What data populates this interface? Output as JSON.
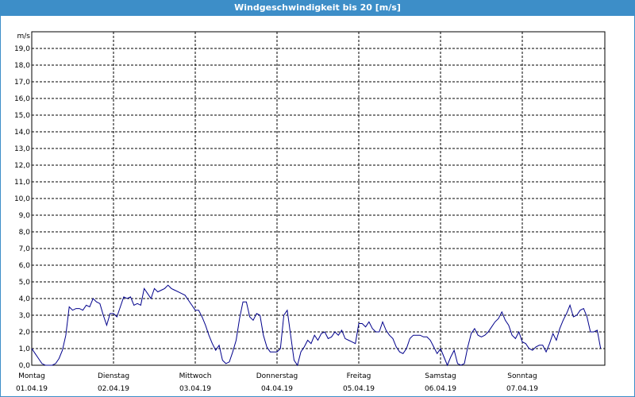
{
  "chart_data": {
    "type": "line",
    "title": "Windgeschwindigkeit bis 20 [m/s]",
    "ylabel": "m/s",
    "ylim": [
      0,
      20
    ],
    "yticks": [
      "0,0",
      "1,0",
      "2,0",
      "3,0",
      "4,0",
      "5,0",
      "6,0",
      "7,0",
      "8,0",
      "9,0",
      "10,0",
      "11,0",
      "12,0",
      "13,0",
      "14,0",
      "15,0",
      "16,0",
      "17,0",
      "18,0",
      "19,0"
    ],
    "days": [
      {
        "name": "Montag",
        "date": "01.04.19"
      },
      {
        "name": "Dienstag",
        "date": "02.04.19"
      },
      {
        "name": "Mittwoch",
        "date": "03.04.19"
      },
      {
        "name": "Donnerstag",
        "date": "04.04.19"
      },
      {
        "name": "Freitag",
        "date": "05.04.19"
      },
      {
        "name": "Samstag",
        "date": "06.04.19"
      },
      {
        "name": "Sonntag",
        "date": "07.04.19"
      }
    ],
    "grid": true,
    "line_color": "#00008b",
    "series": [
      {
        "points_per_day": 24,
        "values": [
          1.0,
          0.7,
          0.4,
          0.1,
          0.0,
          0.0,
          0.0,
          0.1,
          0.4,
          0.9,
          1.8,
          3.5,
          3.3,
          3.4,
          3.4,
          3.3,
          3.6,
          3.5,
          4.0,
          3.8,
          3.7,
          3.0,
          2.4,
          3.1,
          3.1,
          2.9,
          3.5,
          4.1,
          4.0,
          4.1,
          3.6,
          3.7,
          3.6,
          4.6,
          4.3,
          4.0,
          4.6,
          4.4,
          4.5,
          4.6,
          4.8,
          4.6,
          4.5,
          4.4,
          4.3,
          4.2,
          3.9,
          3.6,
          3.3,
          3.3,
          2.9,
          2.4,
          1.8,
          1.3,
          0.9,
          1.2,
          0.3,
          0.1,
          0.2,
          0.8,
          1.5,
          2.8,
          3.8,
          3.8,
          2.9,
          2.7,
          3.1,
          3.0,
          1.8,
          1.1,
          0.8,
          0.8,
          0.8,
          1.0,
          3.0,
          3.3,
          1.8,
          0.3,
          0.0,
          0.8,
          1.1,
          1.5,
          1.3,
          1.8,
          1.5,
          1.9,
          2.0,
          1.6,
          1.7,
          2.0,
          1.8,
          2.1,
          1.6,
          1.5,
          1.4,
          1.3,
          2.5,
          2.5,
          2.3,
          2.6,
          2.2,
          2.0,
          2.0,
          2.6,
          2.1,
          1.8,
          1.6,
          1.1,
          0.8,
          0.7,
          1.0,
          1.6,
          1.8,
          1.8,
          1.8,
          1.7,
          1.7,
          1.5,
          1.1,
          0.7,
          1.0,
          0.5,
          0.0,
          0.5,
          0.9,
          0.1,
          0.0,
          0.1,
          1.1,
          1.9,
          2.2,
          1.8,
          1.7,
          1.8,
          2.0,
          2.3,
          2.6,
          2.8,
          3.2,
          2.7,
          2.4,
          1.8,
          1.6,
          2.0,
          1.4,
          1.3,
          1.0,
          0.9,
          1.1,
          1.2,
          1.2,
          0.8,
          1.3,
          1.9,
          1.5,
          2.2,
          2.7,
          3.1,
          3.6,
          2.9,
          3.0,
          3.3,
          3.4,
          2.9,
          2.0,
          2.0,
          2.1,
          1.0
        ]
      }
    ]
  }
}
